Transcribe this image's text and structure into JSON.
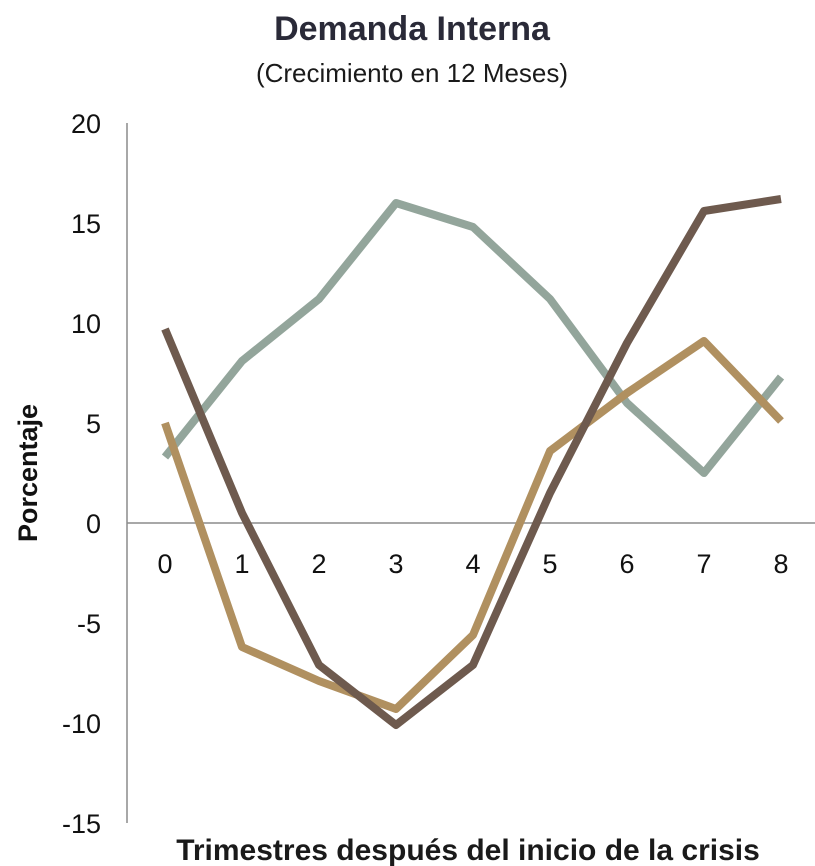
{
  "chart_data": {
    "type": "line",
    "title": "Demanda Interna",
    "subtitle": "(Crecimiento en 12 Meses)",
    "xlabel": "Trimestres después del inicio de la crisis",
    "ylabel": "Porcentaje",
    "x": [
      0,
      1,
      2,
      3,
      4,
      5,
      6,
      7,
      8
    ],
    "x_tick_labels": [
      "0",
      "1",
      "2",
      "3",
      "4",
      "5",
      "6",
      "7",
      "8"
    ],
    "y_tick_labels": [
      "20",
      "15",
      "10",
      "5",
      "0",
      "-5",
      "-10",
      "-15"
    ],
    "ylim": [
      -15,
      20
    ],
    "grid": false,
    "series": [
      {
        "color": "#93a59b",
        "values": [
          3.3,
          8.1,
          11.2,
          16.0,
          14.8,
          11.2,
          6.0,
          2.5,
          7.3
        ]
      },
      {
        "color": "#b09060",
        "values": [
          5.0,
          -6.2,
          -7.9,
          -9.3,
          -5.6,
          3.6,
          6.5,
          9.1,
          5.1
        ]
      },
      {
        "color": "#6e5a4e",
        "values": [
          9.7,
          0.5,
          -7.1,
          -10.1,
          -7.1,
          1.5,
          9.0,
          15.6,
          16.2
        ]
      }
    ]
  }
}
